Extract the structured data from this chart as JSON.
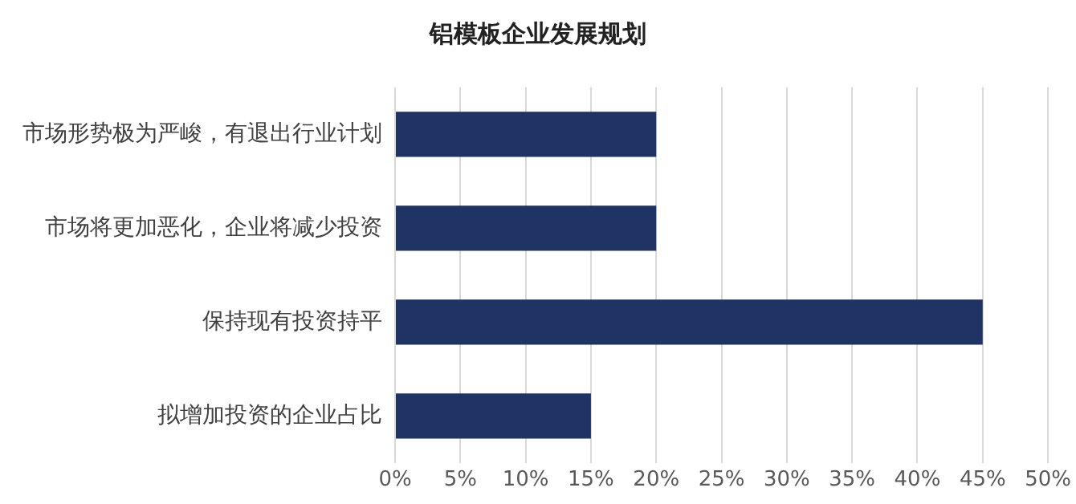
{
  "chart_data": {
    "type": "bar",
    "orientation": "horizontal",
    "title": "铝模板企业发展规划",
    "categories": [
      "市场形势极为严峻，有退出行业计划",
      "市场将更加恶化，企业将减少投资",
      "保持现有投资持平",
      "拟增加投资的企业占比"
    ],
    "values": [
      20,
      20,
      45,
      15
    ],
    "color": "#1f3464",
    "xlim": [
      0,
      50
    ],
    "xticks": [
      {
        "value": 0,
        "label": "0%"
      },
      {
        "value": 5,
        "label": "5%"
      },
      {
        "value": 10,
        "label": "10%"
      },
      {
        "value": 15,
        "label": "15%"
      },
      {
        "value": 20,
        "label": "20%"
      },
      {
        "value": 25,
        "label": "25%"
      },
      {
        "value": 30,
        "label": "30%"
      },
      {
        "value": 35,
        "label": "35%"
      },
      {
        "value": 40,
        "label": "40%"
      },
      {
        "value": 45,
        "label": "45%"
      },
      {
        "value": 50,
        "label": "50%"
      }
    ],
    "grid": "x",
    "legend": false
  }
}
